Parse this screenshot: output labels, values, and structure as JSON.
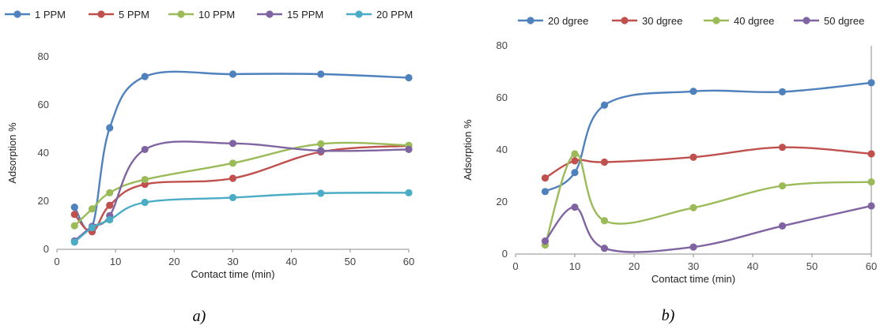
{
  "chart_data": [
    {
      "type": "line",
      "caption": "a)",
      "xlabel": "Contact time (min)",
      "ylabel": "Adsorption %",
      "xlim": [
        0,
        60
      ],
      "ylim": [
        0,
        80
      ],
      "xticks": [
        0,
        10,
        20,
        30,
        40,
        50,
        60
      ],
      "yticks": [
        0,
        20,
        40,
        60,
        80
      ],
      "legend_position": "top",
      "grid": false,
      "smooth": true,
      "x": [
        3,
        6,
        9,
        15,
        30,
        45,
        60
      ],
      "series": [
        {
          "name": "1 PPM",
          "color": "#4F81BD",
          "values": [
            17.5,
            9.5,
            50.5,
            71.8,
            72.8,
            72.8,
            71.3
          ]
        },
        {
          "name": "5 PPM",
          "color": "#C0504D",
          "values": [
            14.5,
            7.3,
            18.3,
            27.0,
            29.5,
            40.5,
            43.0
          ]
        },
        {
          "name": "10 PPM",
          "color": "#9BBB59",
          "values": [
            9.8,
            16.8,
            23.5,
            29.0,
            35.8,
            43.8,
            43.2
          ]
        },
        {
          "name": "15 PPM",
          "color": "#8064A2",
          "values": [
            3.5,
            9.5,
            14.0,
            41.5,
            44.0,
            41.0,
            41.5
          ]
        },
        {
          "name": "20 PPM",
          "color": "#4BACC6",
          "values": [
            3.0,
            9.0,
            12.3,
            19.5,
            21.5,
            23.3,
            23.5
          ]
        }
      ]
    },
    {
      "type": "line",
      "caption": "b)",
      "xlabel": "Contact time (min)",
      "ylabel": "Adsorption %",
      "xlim": [
        0,
        60
      ],
      "ylim": [
        0,
        80
      ],
      "xticks": [
        0,
        10,
        20,
        30,
        40,
        50,
        60
      ],
      "yticks": [
        0,
        20,
        40,
        60,
        80
      ],
      "legend_position": "top",
      "grid": false,
      "smooth": true,
      "x": [
        5,
        10,
        15,
        30,
        45,
        60
      ],
      "series": [
        {
          "name": "20 dgree",
          "color": "#4F81BD",
          "values": [
            24.0,
            31.3,
            57.2,
            62.5,
            62.3,
            65.8
          ]
        },
        {
          "name": "30 dgree",
          "color": "#C0504D",
          "values": [
            29.2,
            35.8,
            35.3,
            37.2,
            41.0,
            38.5
          ]
        },
        {
          "name": "40 dgree",
          "color": "#9BBB59",
          "values": [
            3.5,
            38.5,
            12.8,
            17.8,
            26.2,
            27.7
          ]
        },
        {
          "name": "50 dgree",
          "color": "#8064A2",
          "values": [
            5.0,
            18.0,
            2.2,
            2.7,
            10.8,
            18.5
          ]
        }
      ]
    }
  ]
}
